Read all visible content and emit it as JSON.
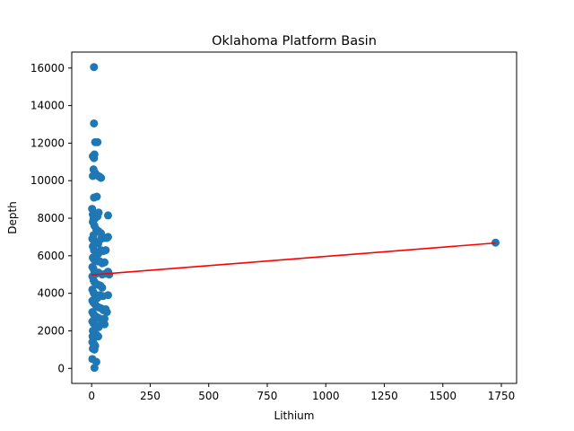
{
  "chart_data": {
    "type": "scatter",
    "title": "Oklahoma Platform Basin",
    "xlabel": "Lithium",
    "ylabel": "Depth",
    "xlim": [
      -85,
      1815
    ],
    "ylim": [
      -800,
      16850
    ],
    "xticks": [
      0,
      250,
      500,
      750,
      1000,
      1250,
      1500,
      1750
    ],
    "yticks": [
      0,
      2000,
      4000,
      6000,
      8000,
      10000,
      12000,
      14000,
      16000
    ],
    "grid": false,
    "legend": "none",
    "colors": {
      "points": "#1f77b4",
      "fit_line": "#ff0000"
    },
    "points": [
      [
        10,
        16050
      ],
      [
        10,
        13050
      ],
      [
        15,
        12050
      ],
      [
        25,
        12050
      ],
      [
        5,
        11300
      ],
      [
        10,
        11200
      ],
      [
        12,
        11400
      ],
      [
        8,
        10600
      ],
      [
        15,
        10400
      ],
      [
        20,
        10300
      ],
      [
        28,
        10250
      ],
      [
        35,
        10200
      ],
      [
        40,
        10150
      ],
      [
        5,
        10250
      ],
      [
        10,
        9100
      ],
      [
        22,
        9150
      ],
      [
        2,
        8500
      ],
      [
        5,
        8200
      ],
      [
        8,
        7950
      ],
      [
        15,
        8000
      ],
      [
        25,
        8100
      ],
      [
        30,
        8300
      ],
      [
        70,
        8150
      ],
      [
        5,
        7800
      ],
      [
        12,
        7600
      ],
      [
        20,
        7400
      ],
      [
        30,
        7300
      ],
      [
        40,
        7200
      ],
      [
        8,
        7100
      ],
      [
        3,
        6900
      ],
      [
        10,
        6800
      ],
      [
        18,
        6700
      ],
      [
        28,
        6650
      ],
      [
        40,
        6900
      ],
      [
        55,
        6950
      ],
      [
        70,
        7000
      ],
      [
        65,
        6950
      ],
      [
        5,
        6500
      ],
      [
        10,
        6300
      ],
      [
        18,
        6200
      ],
      [
        28,
        6100
      ],
      [
        40,
        6300
      ],
      [
        50,
        6250
      ],
      [
        60,
        6300
      ],
      [
        5,
        5900
      ],
      [
        10,
        5800
      ],
      [
        15,
        5750
      ],
      [
        25,
        5700
      ],
      [
        35,
        5700
      ],
      [
        45,
        5600
      ],
      [
        55,
        5650
      ],
      [
        3,
        5400
      ],
      [
        8,
        5300
      ],
      [
        12,
        5150
      ],
      [
        20,
        5050
      ],
      [
        30,
        5100
      ],
      [
        45,
        5000
      ],
      [
        60,
        5050
      ],
      [
        70,
        5150
      ],
      [
        75,
        5000
      ],
      [
        3,
        4900
      ],
      [
        8,
        4700
      ],
      [
        12,
        4600
      ],
      [
        20,
        4500
      ],
      [
        28,
        4450
      ],
      [
        38,
        4400
      ],
      [
        45,
        4300
      ],
      [
        3,
        4200
      ],
      [
        8,
        4050
      ],
      [
        12,
        3950
      ],
      [
        18,
        3850
      ],
      [
        25,
        3750
      ],
      [
        35,
        3900
      ],
      [
        48,
        3850
      ],
      [
        70,
        3900
      ],
      [
        3,
        3600
      ],
      [
        8,
        3500
      ],
      [
        15,
        3400
      ],
      [
        22,
        3300
      ],
      [
        30,
        3250
      ],
      [
        40,
        3200
      ],
      [
        50,
        3100
      ],
      [
        60,
        3150
      ],
      [
        65,
        3000
      ],
      [
        3,
        3000
      ],
      [
        8,
        2900
      ],
      [
        12,
        2800
      ],
      [
        20,
        2750
      ],
      [
        28,
        2700
      ],
      [
        35,
        2650
      ],
      [
        48,
        2600
      ],
      [
        55,
        2650
      ],
      [
        3,
        2500
      ],
      [
        8,
        2400
      ],
      [
        15,
        2300
      ],
      [
        22,
        2250
      ],
      [
        30,
        2200
      ],
      [
        45,
        2400
      ],
      [
        55,
        2350
      ],
      [
        5,
        2000
      ],
      [
        12,
        1900
      ],
      [
        20,
        1800
      ],
      [
        28,
        1700
      ],
      [
        4,
        1700
      ],
      [
        8,
        1600
      ],
      [
        3,
        1400
      ],
      [
        10,
        1300
      ],
      [
        15,
        1200
      ],
      [
        5,
        1050
      ],
      [
        12,
        1000
      ],
      [
        3,
        500
      ],
      [
        20,
        350
      ],
      [
        12,
        30
      ]
    ],
    "fit_line": {
      "x": [
        0,
        1725
      ],
      "y": [
        4980,
        6680
      ]
    },
    "outlier": [
      1725,
      6700
    ]
  }
}
